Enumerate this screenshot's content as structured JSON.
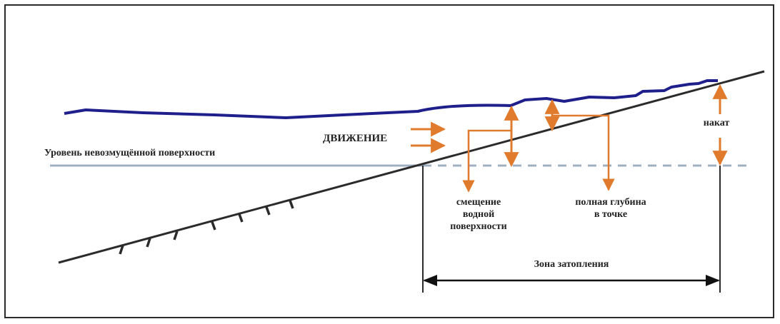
{
  "labels": {
    "undisturbed_level": "Уровень невозмущённой поверхности",
    "movement": "ДВИЖЕНИЕ",
    "displacement_line1": "смещение",
    "displacement_line2": "водной",
    "displacement_line3": "поверхности",
    "total_depth_line1": "полная глубина",
    "total_depth_line2": "в точке",
    "runup": "накат",
    "inundation_zone": "Зона затопления"
  },
  "colors": {
    "water_surface": "#1f1f8c",
    "still_water": "#9fb0c0",
    "arrows": "#e07b2e",
    "seabed": "#2b2b2b",
    "frame": "#2b2b2b"
  }
}
